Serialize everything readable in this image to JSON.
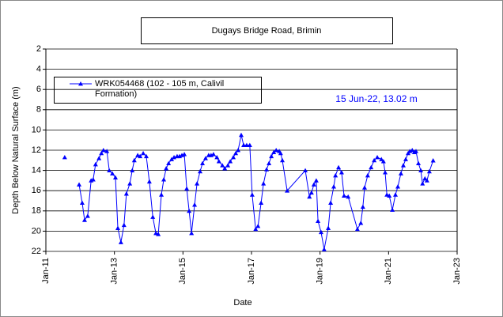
{
  "chart_data": {
    "type": "line",
    "title": "Dugays Bridge Road, Brimin",
    "xlabel": "Date",
    "ylabel": "Depth Below Natural Surface (m)",
    "annotation": "15 Jun-22, 13.02 m",
    "xlim": [
      2011,
      2023
    ],
    "xticks": [
      {
        "value": 2011,
        "label": "Jan-11"
      },
      {
        "value": 2013,
        "label": "Jan-13"
      },
      {
        "value": 2015,
        "label": "Jan-15"
      },
      {
        "value": 2017,
        "label": "Jan-17"
      },
      {
        "value": 2019,
        "label": "Jan-19"
      },
      {
        "value": 2021,
        "label": "Jan-21"
      },
      {
        "value": 2023,
        "label": "Jan-23"
      }
    ],
    "ylim": [
      2,
      22
    ],
    "yticks": [
      2,
      4,
      6,
      8,
      10,
      12,
      14,
      16,
      18,
      20,
      22
    ],
    "y_inverted": true,
    "grid": true,
    "legend": "upper left",
    "x": [
      2011.55,
      null,
      2011.97,
      2012.06,
      2012.13,
      2012.22,
      2012.32,
      2012.38,
      2012.45,
      2012.55,
      2012.62,
      2012.68,
      2012.78,
      2012.85,
      2012.94,
      2013.03,
      2013.1,
      2013.19,
      2013.28,
      2013.35,
      2013.45,
      2013.52,
      2013.58,
      2013.68,
      2013.75,
      2013.84,
      2013.93,
      2014.02,
      2014.12,
      2014.21,
      2014.28,
      2014.37,
      2014.44,
      2014.51,
      2014.58,
      2014.67,
      2014.74,
      2014.83,
      2014.9,
      2014.97,
      2015.04,
      2015.11,
      2015.18,
      2015.25,
      2015.34,
      2015.41,
      2015.5,
      2015.57,
      2015.66,
      2015.75,
      2015.82,
      2015.89,
      2015.99,
      2016.05,
      2016.15,
      2016.22,
      2016.31,
      2016.38,
      2016.47,
      2016.54,
      2016.61,
      2016.7,
      2016.77,
      2016.86,
      2016.95,
      2017.02,
      2017.12,
      2017.19,
      2017.28,
      2017.35,
      2017.44,
      2017.51,
      2017.58,
      2017.65,
      2017.72,
      2017.81,
      2017.85,
      2017.9,
      2018.04,
      2018.57,
      2018.69,
      2018.75,
      2018.82,
      2018.89,
      2018.94,
      2019.03,
      2019.12,
      2019.24,
      2019.31,
      2019.4,
      2019.45,
      2019.54,
      2019.63,
      2019.7,
      2019.82,
      2020.09,
      2020.19,
      2020.25,
      2020.3,
      2020.39,
      2020.49,
      2020.58,
      2020.67,
      2020.79,
      2020.85,
      2020.9,
      2020.95,
      2021.02,
      2021.11,
      2021.2,
      2021.27,
      2021.36,
      2021.43,
      2021.5,
      2021.57,
      2021.62,
      2021.69,
      2021.75,
      2021.8,
      2021.87,
      2021.94,
      2021.99,
      2022.06,
      2022.12,
      2022.19,
      2022.3
    ],
    "series": [
      {
        "name": "WRK054468 (102 - 105 m, Calivil Formation)",
        "color": "#0000ff",
        "values": [
          12.7,
          null,
          15.4,
          17.2,
          18.9,
          18.5,
          15.0,
          14.9,
          13.4,
          12.8,
          12.3,
          12.0,
          12.1,
          14.0,
          14.3,
          14.7,
          19.7,
          21.1,
          19.4,
          16.3,
          15.3,
          14.0,
          13.0,
          12.5,
          12.6,
          12.3,
          12.6,
          15.1,
          18.6,
          20.2,
          20.3,
          16.4,
          14.9,
          13.8,
          13.3,
          12.9,
          12.7,
          12.6,
          12.6,
          12.5,
          12.4,
          15.8,
          18.0,
          20.2,
          17.4,
          15.3,
          14.1,
          13.3,
          12.8,
          12.5,
          12.5,
          12.4,
          12.7,
          13.1,
          13.5,
          13.8,
          13.5,
          13.1,
          12.7,
          12.3,
          12.0,
          10.5,
          11.5,
          11.5,
          11.5,
          16.4,
          19.8,
          19.5,
          17.2,
          15.3,
          13.9,
          13.3,
          12.6,
          12.2,
          12.0,
          12.1,
          12.3,
          13.0,
          16.0,
          14.0,
          16.6,
          16.2,
          15.4,
          15.0,
          19.0,
          20.1,
          21.8,
          19.7,
          17.2,
          15.6,
          14.5,
          13.7,
          14.2,
          16.5,
          16.6,
          19.8,
          19.2,
          17.6,
          15.7,
          14.5,
          13.7,
          13.0,
          12.7,
          12.9,
          13.1,
          14.2,
          16.4,
          16.5,
          17.9,
          16.4,
          15.6,
          14.3,
          13.5,
          12.9,
          12.3,
          12.1,
          12.0,
          12.2,
          12.1,
          13.3,
          14.0,
          15.3,
          14.8,
          15.0,
          14.1,
          13.02
        ]
      }
    ]
  }
}
